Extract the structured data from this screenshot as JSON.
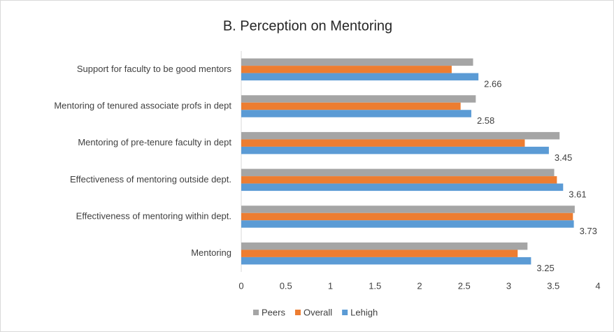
{
  "chart_data": {
    "type": "bar",
    "orientation": "horizontal",
    "title": "B. Perception on Mentoring",
    "categories": [
      "Support for faculty to be good mentors",
      "Mentoring of tenured associate profs in dept",
      "Mentoring of pre-tenure faculty in dept",
      "Effectiveness of mentoring outside dept.",
      "Effectiveness of mentoring within dept.",
      "Mentoring"
    ],
    "series": [
      {
        "name": "Peers",
        "color": "#a5a5a5",
        "values": [
          2.6,
          2.63,
          3.57,
          3.51,
          3.74,
          3.21
        ]
      },
      {
        "name": "Overall",
        "color": "#ed7d31",
        "values": [
          2.36,
          2.46,
          3.18,
          3.54,
          3.72,
          3.1
        ]
      },
      {
        "name": "Lehigh",
        "color": "#5b9bd5",
        "values": [
          2.66,
          2.58,
          3.45,
          3.61,
          3.73,
          3.25
        ],
        "show_labels": true
      }
    ],
    "xlim": [
      0,
      4
    ],
    "xticks": [
      0,
      0.5,
      1,
      1.5,
      2,
      2.5,
      3,
      3.5,
      4
    ],
    "grid": false,
    "legend": "bottom"
  }
}
